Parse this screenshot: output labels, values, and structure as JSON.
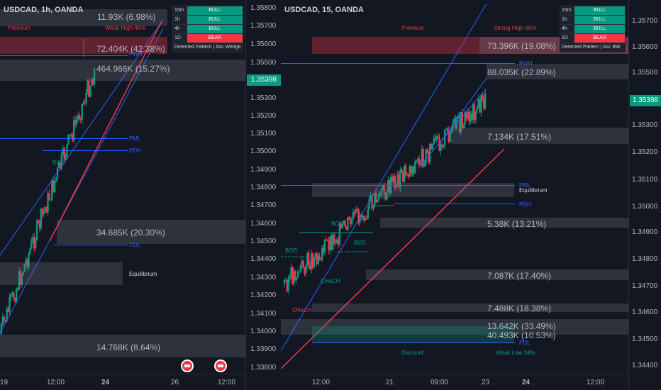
{
  "left": {
    "title": "USDCAD, 1h, OANDA",
    "premium": "Premium",
    "weak_high": "Weak High 46%",
    "pwh": "PWH",
    "pml": "PML",
    "pdh": "PDH",
    "pdl": "PDL",
    "equilibrium": "Equilibrium",
    "bos": "BOS",
    "volumes": [
      "11.93K (6.98%)",
      "72.404K (42.38%)",
      "464.966K (15.27%)",
      "34.685K (20.30%)",
      "14.768K (8.64%)"
    ],
    "time_labels": [
      "19",
      "12:00",
      "24",
      "26",
      "12:00"
    ],
    "table": {
      "rows": [
        {
          "tf": "15m",
          "trend": "BULL"
        },
        {
          "tf": "1h",
          "trend": "BULL"
        },
        {
          "tf": "4h",
          "trend": "BULL"
        },
        {
          "tf": "1D",
          "trend": "BEAR"
        }
      ],
      "pattern": "Detected Pattern | Asc Wedge"
    }
  },
  "center_axis": {
    "prices": [
      "1.35800",
      "1.35700",
      "1.35600",
      "1.35500",
      "1.35300",
      "1.35200",
      "1.35100",
      "1.35000",
      "1.34900",
      "1.34800",
      "1.34700",
      "1.34600",
      "1.34500",
      "1.34400",
      "1.34300",
      "1.34200",
      "1.34100",
      "1.34000",
      "1.33900",
      "1.33800"
    ],
    "current": "1.35398"
  },
  "right": {
    "title": "USDCAD, 15, OANDA",
    "premium": "Premium",
    "strong_high": "Strong High 66%",
    "pwh": "PWH",
    "pml": "PML",
    "equilibrium": "Equilibrium",
    "pdh": "PDH",
    "pdl": "PDL",
    "discount": "Discount",
    "weak_low": "Weak Low 34%",
    "bos_labels": [
      "BOS",
      "BOS",
      "BOS",
      "BOS"
    ],
    "choch": [
      "CHoCH",
      "CHoCH"
    ],
    "volumes": [
      "73.396K (19.08%)",
      "88.035K (22.89%)",
      "7.134K (17.51%)",
      "5.38K (13.21%)",
      "7.087K (17.40%)",
      "7.488K (18.38%)",
      "13.642K (33.49%)",
      "40.493K (10.53%)"
    ],
    "time_labels": [
      "12:00",
      "21",
      "09:00",
      "23",
      "24",
      "12:00"
    ],
    "table": {
      "rows": [
        {
          "tf": "15m",
          "trend": "BULL"
        },
        {
          "tf": "1h",
          "trend": "BULL"
        },
        {
          "tf": "4h",
          "trend": "BULL"
        },
        {
          "tf": "1D",
          "trend": "BEAR"
        }
      ],
      "pattern": "Detected Pattern | Asc BW"
    },
    "prices": [
      "1.35700",
      "1.35600",
      "1.35500",
      "1.35300",
      "1.35200",
      "1.35100",
      "1.35000",
      "1.34900",
      "1.34800",
      "1.34700",
      "1.34600",
      "1.34500",
      "1.34400"
    ],
    "current": "1.35398"
  },
  "colors": {
    "bull": "#089981",
    "bear": "#f23645",
    "blue": "#2962ff",
    "red": "#f23645"
  }
}
